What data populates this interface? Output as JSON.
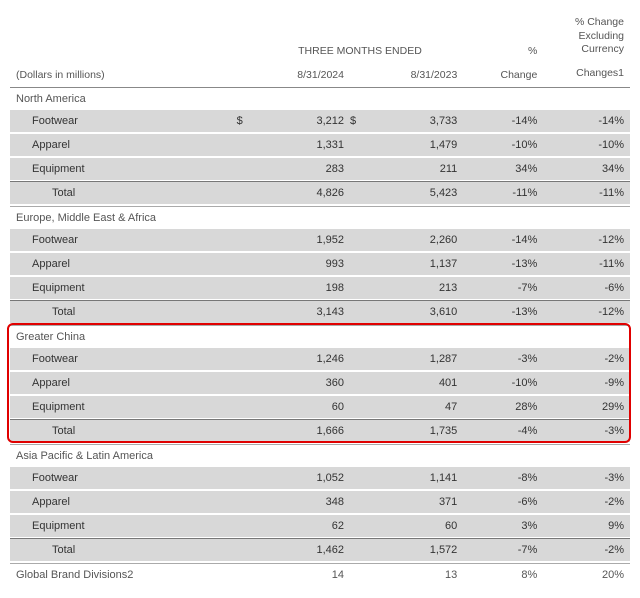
{
  "header": {
    "caption": "(Dollars in millions)",
    "span_title": "THREE MONTHS ENDED",
    "col_2024": "8/31/2024",
    "col_2023": "8/31/2023",
    "pct_change_top": "%",
    "pct_change_bot": "Change",
    "exc_l1": "% Change",
    "exc_l2": "Excluding",
    "exc_l3": "Currency",
    "exc_l4": "Changes1"
  },
  "currency_symbol": "$",
  "regions": [
    {
      "name": "North America",
      "show_currency": true,
      "rows": [
        {
          "label": "Footwear",
          "v2024": "3,212",
          "v2023": "3,733",
          "pct": "-14%",
          "exc": "-14%"
        },
        {
          "label": "Apparel",
          "v2024": "1,331",
          "v2023": "1,479",
          "pct": "-10%",
          "exc": "-10%"
        },
        {
          "label": "Equipment",
          "v2024": "283",
          "v2023": "211",
          "pct": "34%",
          "exc": "34%"
        }
      ],
      "total": {
        "label": "Total",
        "v2024": "4,826",
        "v2023": "5,423",
        "pct": "-11%",
        "exc": "-11%"
      }
    },
    {
      "name": "Europe, Middle East & Africa",
      "rows": [
        {
          "label": "Footwear",
          "v2024": "1,952",
          "v2023": "2,260",
          "pct": "-14%",
          "exc": "-12%"
        },
        {
          "label": "Apparel",
          "v2024": "993",
          "v2023": "1,137",
          "pct": "-13%",
          "exc": "-11%"
        },
        {
          "label": "Equipment",
          "v2024": "198",
          "v2023": "213",
          "pct": "-7%",
          "exc": "-6%"
        }
      ],
      "total": {
        "label": "Total",
        "v2024": "3,143",
        "v2023": "3,610",
        "pct": "-13%",
        "exc": "-12%"
      }
    },
    {
      "name": "Greater China",
      "highlight": true,
      "rows": [
        {
          "label": "Footwear",
          "v2024": "1,246",
          "v2023": "1,287",
          "pct": "-3%",
          "exc": "-2%"
        },
        {
          "label": "Apparel",
          "v2024": "360",
          "v2023": "401",
          "pct": "-10%",
          "exc": "-9%"
        },
        {
          "label": "Equipment",
          "v2024": "60",
          "v2023": "47",
          "pct": "28%",
          "exc": "29%"
        }
      ],
      "total": {
        "label": "Total",
        "v2024": "1,666",
        "v2023": "1,735",
        "pct": "-4%",
        "exc": "-3%"
      }
    },
    {
      "name": "Asia Pacific & Latin America",
      "rows": [
        {
          "label": "Footwear",
          "v2024": "1,052",
          "v2023": "1,141",
          "pct": "-8%",
          "exc": "-3%"
        },
        {
          "label": "Apparel",
          "v2024": "348",
          "v2023": "371",
          "pct": "-6%",
          "exc": "-2%"
        },
        {
          "label": "Equipment",
          "v2024": "62",
          "v2023": "60",
          "pct": "3%",
          "exc": "9%"
        }
      ],
      "total": {
        "label": "Total",
        "v2024": "1,462",
        "v2023": "1,572",
        "pct": "-7%",
        "exc": "-2%"
      }
    }
  ],
  "final_region": {
    "name": "Global Brand Divisions2",
    "v2024": "14",
    "v2023": "13",
    "pct": "8%",
    "exc": "20%"
  },
  "styles": {
    "highlight_color": "#e00000",
    "stripe_color": "#d8d8d8",
    "border_color": "#aaa"
  }
}
